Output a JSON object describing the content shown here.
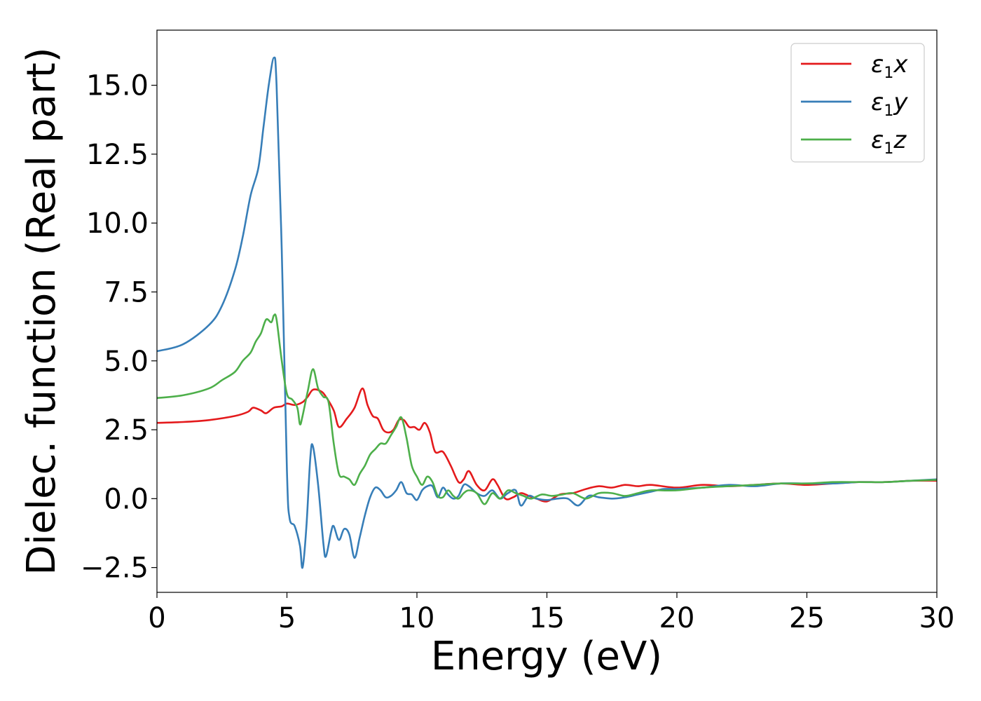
{
  "chart_data": {
    "type": "line",
    "title": "",
    "xlabel": "Energy (eV)",
    "ylabel": "Dielec. function (Real part)",
    "xlim": [
      0,
      30
    ],
    "ylim": [
      -3.4,
      17.0
    ],
    "xticks": [
      0,
      5,
      10,
      15,
      20,
      25,
      30
    ],
    "xtick_labels": [
      "0",
      "5",
      "10",
      "15",
      "20",
      "25",
      "30"
    ],
    "yticks": [
      -2.5,
      0.0,
      2.5,
      5.0,
      7.5,
      10.0,
      12.5,
      15.0
    ],
    "ytick_labels": [
      "−2.5",
      "0.0",
      "2.5",
      "5.0",
      "7.5",
      "10.0",
      "12.5",
      "15.0"
    ],
    "grid": false,
    "legend_position": "top-right",
    "series": [
      {
        "name": "ε1x",
        "color": "#e41a1c",
        "x": [
          0,
          1,
          2,
          3,
          3.5,
          3.7,
          4.0,
          4.2,
          4.5,
          4.8,
          5.0,
          5.3,
          5.6,
          5.8,
          6.0,
          6.3,
          6.5,
          6.8,
          7.0,
          7.3,
          7.6,
          7.9,
          8.1,
          8.3,
          8.5,
          8.7,
          8.9,
          9.1,
          9.3,
          9.5,
          9.7,
          9.9,
          10.1,
          10.3,
          10.5,
          10.7,
          11.0,
          11.3,
          11.6,
          11.8,
          12.0,
          12.3,
          12.6,
          12.9,
          13.1,
          13.4,
          13.7,
          14.0,
          14.3,
          14.6,
          15.0,
          15.5,
          16.0,
          16.5,
          17.0,
          17.5,
          18.0,
          18.5,
          19.0,
          20,
          21,
          22,
          23,
          24,
          25,
          26,
          27,
          28,
          29,
          30
        ],
        "y": [
          2.75,
          2.78,
          2.85,
          3.0,
          3.15,
          3.3,
          3.2,
          3.1,
          3.3,
          3.35,
          3.45,
          3.4,
          3.5,
          3.7,
          3.95,
          3.9,
          3.7,
          3.2,
          2.6,
          2.9,
          3.3,
          4.0,
          3.4,
          3.0,
          2.9,
          2.5,
          2.4,
          2.5,
          2.85,
          2.85,
          2.6,
          2.6,
          2.5,
          2.75,
          2.4,
          1.7,
          1.7,
          1.2,
          0.6,
          0.7,
          1.0,
          0.5,
          0.3,
          0.7,
          0.5,
          0.0,
          0.05,
          0.2,
          0.1,
          0.0,
          -0.1,
          0.15,
          0.2,
          0.35,
          0.45,
          0.4,
          0.5,
          0.45,
          0.5,
          0.4,
          0.5,
          0.45,
          0.5,
          0.55,
          0.5,
          0.55,
          0.6,
          0.6,
          0.65,
          0.65
        ]
      },
      {
        "name": "ε1y",
        "color": "#377eb8",
        "x": [
          0,
          1,
          2,
          2.5,
          3,
          3.3,
          3.6,
          3.9,
          4.1,
          4.3,
          4.5,
          4.6,
          4.8,
          5.0,
          5.1,
          5.3,
          5.5,
          5.6,
          5.75,
          5.9,
          6.0,
          6.2,
          6.4,
          6.5,
          6.7,
          6.8,
          7.0,
          7.2,
          7.4,
          7.6,
          7.8,
          8.0,
          8.2,
          8.4,
          8.6,
          8.8,
          9.0,
          9.2,
          9.4,
          9.6,
          9.8,
          10.0,
          10.2,
          10.4,
          10.6,
          10.8,
          11.0,
          11.2,
          11.4,
          11.6,
          11.8,
          12.0,
          12.3,
          12.6,
          12.9,
          13.2,
          13.5,
          13.8,
          14.0,
          14.3,
          14.6,
          15.0,
          15.4,
          15.8,
          16.2,
          16.6,
          17.0,
          17.5,
          18.0,
          18.5,
          19.0,
          19.5,
          20,
          21,
          22,
          23,
          24,
          25,
          26,
          27,
          28,
          29,
          30
        ],
        "y": [
          5.35,
          5.6,
          6.3,
          7.0,
          8.3,
          9.5,
          11.0,
          12.0,
          13.5,
          15.0,
          16.0,
          15.0,
          9.0,
          1.0,
          -0.7,
          -1.0,
          -1.7,
          -2.5,
          -1.0,
          1.5,
          1.9,
          0.5,
          -1.6,
          -2.1,
          -1.2,
          -1.0,
          -1.5,
          -1.1,
          -1.3,
          -2.15,
          -1.4,
          -0.6,
          0.05,
          0.4,
          0.3,
          0.05,
          0.1,
          0.3,
          0.6,
          0.2,
          0.15,
          -0.05,
          0.3,
          0.45,
          0.45,
          0.05,
          0.4,
          0.15,
          0.0,
          0.1,
          0.5,
          0.45,
          0.2,
          0.1,
          0.3,
          0.0,
          0.2,
          0.3,
          -0.25,
          0.1,
          0.0,
          -0.05,
          0.0,
          0.0,
          -0.25,
          0.1,
          0.05,
          0.0,
          0.05,
          0.15,
          0.25,
          0.35,
          0.35,
          0.4,
          0.5,
          0.45,
          0.55,
          0.55,
          0.55,
          0.6,
          0.6,
          0.65,
          0.7
        ]
      },
      {
        "name": "ε1z",
        "color": "#4daf4a",
        "x": [
          0,
          1,
          2,
          2.5,
          3,
          3.3,
          3.6,
          3.8,
          4.0,
          4.2,
          4.4,
          4.5,
          4.6,
          4.8,
          5.0,
          5.2,
          5.4,
          5.5,
          5.6,
          5.8,
          6.0,
          6.2,
          6.4,
          6.6,
          6.8,
          7.0,
          7.2,
          7.4,
          7.6,
          7.8,
          8.0,
          8.2,
          8.4,
          8.6,
          8.8,
          9.0,
          9.2,
          9.4,
          9.6,
          9.8,
          10.0,
          10.2,
          10.4,
          10.6,
          10.8,
          11.0,
          11.2,
          11.4,
          11.6,
          11.8,
          12.0,
          12.3,
          12.6,
          12.9,
          13.2,
          13.5,
          13.8,
          14.1,
          14.4,
          14.8,
          15.2,
          15.6,
          16.0,
          16.5,
          17.0,
          17.5,
          18.0,
          18.5,
          19.0,
          20,
          21,
          22,
          23,
          24,
          25,
          26,
          27,
          28,
          29,
          30
        ],
        "y": [
          3.65,
          3.75,
          4.0,
          4.3,
          4.6,
          5.0,
          5.3,
          5.7,
          6.0,
          6.5,
          6.4,
          6.65,
          6.5,
          5.0,
          3.8,
          3.6,
          3.3,
          2.7,
          3.0,
          3.9,
          4.7,
          4.0,
          3.7,
          3.5,
          2.0,
          0.9,
          0.8,
          0.7,
          0.5,
          0.9,
          1.2,
          1.6,
          1.8,
          2.0,
          2.0,
          2.3,
          2.6,
          2.95,
          2.2,
          1.2,
          0.8,
          0.5,
          0.8,
          0.6,
          0.1,
          0.05,
          0.3,
          0.1,
          0.0,
          0.2,
          0.3,
          0.2,
          -0.2,
          0.2,
          0.0,
          0.3,
          0.2,
          0.1,
          0.0,
          0.15,
          0.1,
          0.15,
          0.2,
          0.0,
          0.2,
          0.2,
          0.1,
          0.2,
          0.3,
          0.3,
          0.4,
          0.45,
          0.5,
          0.55,
          0.55,
          0.6,
          0.6,
          0.6,
          0.65,
          0.68
        ]
      }
    ]
  }
}
